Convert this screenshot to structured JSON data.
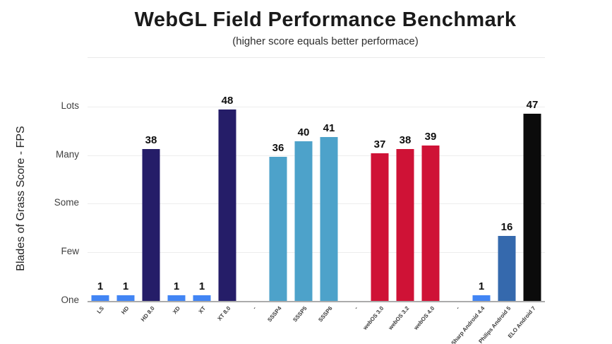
{
  "chart_data": {
    "type": "bar",
    "title": "WebGL Field Performance Benchmark",
    "subtitle": "(higher score equals better performace)",
    "ylabel": "Blades of Grass Score - FPS",
    "y_ticks_top_to_bottom": [
      "Lots",
      "Many",
      "Some",
      "Few",
      "One"
    ],
    "categories": [
      "LS",
      "HD",
      "HD 8.0",
      "XD",
      "XT",
      "XT 8.0",
      "-",
      "SSSP4",
      "SSSP5",
      "SSSP6",
      "-",
      "webOS 3.0",
      "webOS 3.2",
      "webOS 4.0",
      "-",
      "Sharp Android 4.4",
      "Philips Android 5",
      "ELO Android 7"
    ],
    "values": [
      1,
      1,
      38,
      1,
      1,
      48,
      null,
      36,
      40,
      41,
      null,
      37,
      38,
      39,
      null,
      1,
      16,
      47
    ],
    "bar_colors": [
      "#4285f4",
      "#4285f4",
      "#251d68",
      "#4285f4",
      "#4285f4",
      "#251d68",
      null,
      "#4da2ca",
      "#4da2ca",
      "#4da2ca",
      null,
      "#cf1236",
      "#cf1236",
      "#cf1236",
      null,
      "#4285f4",
      "#3569ad",
      "#0b0b0b"
    ],
    "palette": {
      "base-models": "#4285f4",
      "8-series": "#251d68",
      "sssp-series": "#4da2ca",
      "webos-series": "#cf1236",
      "philips": "#3569ad",
      "elo": "#0b0b0b"
    },
    "legend": "none",
    "grid": "horizontal-only",
    "xlabel": ""
  }
}
